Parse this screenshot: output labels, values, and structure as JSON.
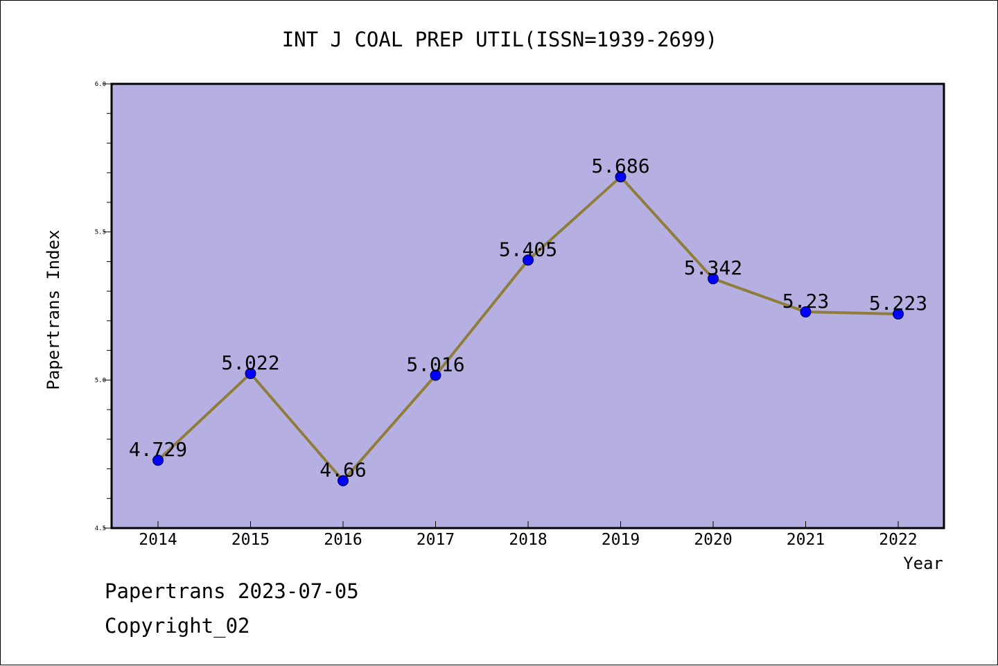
{
  "chart_data": {
    "type": "line",
    "title": "INT J COAL PREP UTIL(ISSN=1939-2699)",
    "xlabel": "Year",
    "ylabel": "Papertrans Index",
    "x": [
      "2014",
      "2015",
      "2016",
      "2017",
      "2018",
      "2019",
      "2020",
      "2021",
      "2022"
    ],
    "series": [
      {
        "values": [
          4.729,
          5.022,
          4.66,
          5.016,
          5.405,
          5.686,
          5.342,
          5.23,
          5.223
        ],
        "labels": [
          "4.729",
          "5.022",
          "4.66",
          "5.016",
          "5.405",
          "5.686",
          "5.342",
          "5.23",
          "5.223"
        ]
      }
    ],
    "ylim": [
      4.5,
      6.0
    ],
    "yticks": [
      "4.5",
      "5.0",
      "5.5",
      "6.0"
    ],
    "grid": false,
    "colors": {
      "plot_background": "#b6b0e2",
      "line": "#8f7d3c",
      "marker": "#0000ff"
    }
  },
  "footer": {
    "line1": "Papertrans 2023-07-05",
    "line2": "Copyright_02"
  }
}
